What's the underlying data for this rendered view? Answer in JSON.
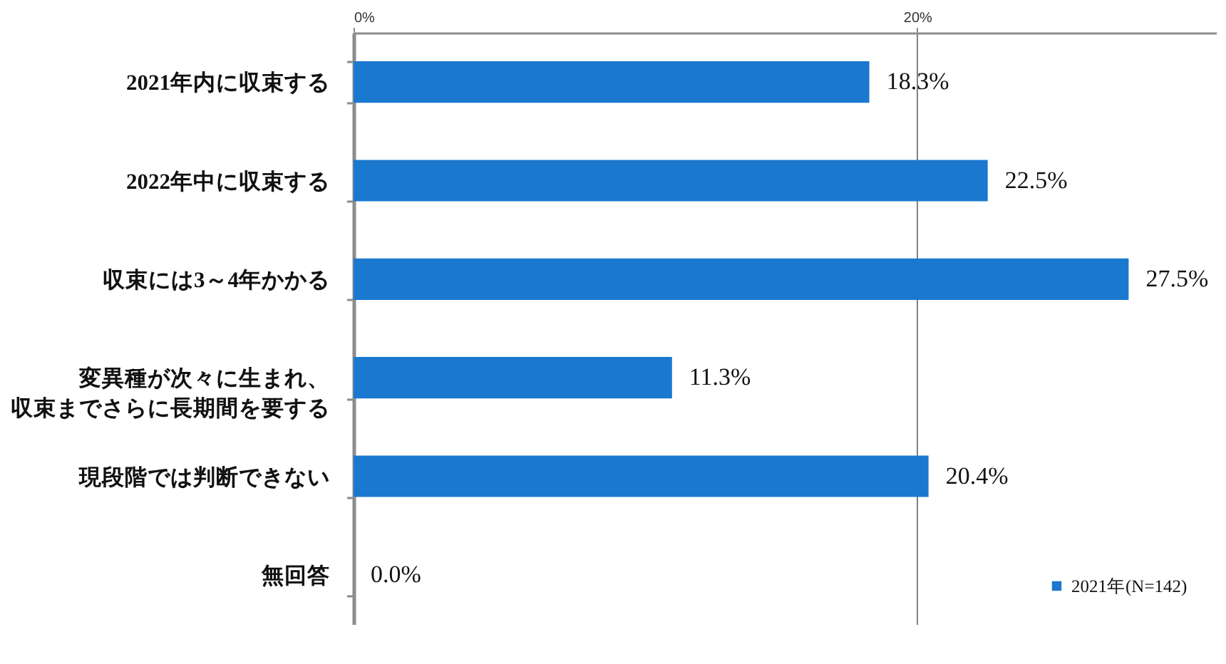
{
  "chart_data": {
    "type": "bar",
    "orientation": "horizontal",
    "categories": [
      "2021年内に収束する",
      "2022年中に収束する",
      "収束には3～4年かかる",
      "変異種が次々に生まれ、収束までさらに長期間を要する",
      "現段階では判断できない",
      "無回答"
    ],
    "series": [
      {
        "name": "2021年(N=142)",
        "color": "#1a78cf",
        "values": [
          18.3,
          22.5,
          27.5,
          11.3,
          20.4,
          0.0
        ],
        "value_labels": [
          "18.3%",
          "22.5%",
          "27.5%",
          "11.3%",
          "20.4%",
          "0.0%"
        ]
      }
    ],
    "xlim": [
      0,
      30.6
    ],
    "xticks": [
      {
        "value": 0,
        "label": "0%"
      },
      {
        "value": 20,
        "label": "20%"
      }
    ],
    "grid": "x",
    "legend": "bottom right"
  }
}
